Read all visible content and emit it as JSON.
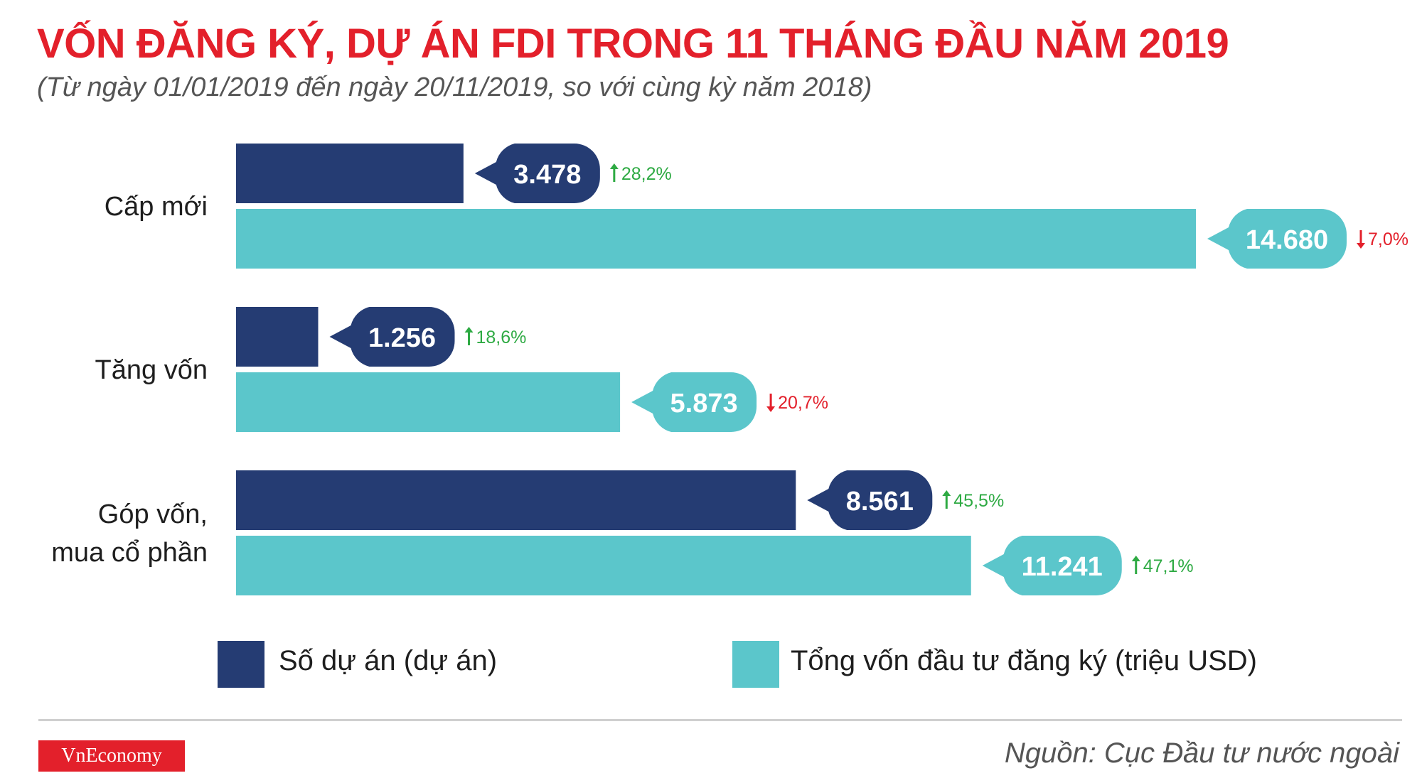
{
  "title": "VỐN ĐĂNG KÝ, DỰ ÁN FDI TRONG 11 THÁNG ĐẦU NĂM 2019",
  "subtitle": "(Từ ngày 01/01/2019 đến ngày 20/11/2019, so với cùng kỳ năm 2018)",
  "legend": [
    {
      "label": "Số dự án (dự án)",
      "color": "#253c73"
    },
    {
      "label": "Tổng vốn đầu tư đăng ký (triệu USD)",
      "color": "#5bc6cb"
    }
  ],
  "source": "Nguồn: Cục Đầu tư nước ngoài",
  "logo": "VnEconomy",
  "colors": {
    "up": "#2eaa43",
    "down": "#e3202b",
    "title": "#e3202b"
  },
  "chart_data": {
    "type": "bar",
    "orientation": "horizontal",
    "categories": [
      "Cấp mới",
      "Tăng vốn",
      "Góp vốn,\nmua cổ phần"
    ],
    "series": [
      {
        "name": "Số dự án (dự án)",
        "values": [
          3478,
          1256,
          8561
        ],
        "value_labels": [
          "3.478",
          "1.256",
          "8.561"
        ],
        "changes": [
          {
            "text": "28,2%",
            "direction": "up"
          },
          {
            "text": "18,6%",
            "direction": "up"
          },
          {
            "text": "45,5%",
            "direction": "up"
          }
        ]
      },
      {
        "name": "Tổng vốn đầu tư đăng ký (triệu USD)",
        "values": [
          14680,
          5873,
          11241
        ],
        "value_labels": [
          "14.680",
          "5.873",
          "11.241"
        ],
        "changes": [
          {
            "text": "7,0%",
            "direction": "down"
          },
          {
            "text": "20,7%",
            "direction": "down"
          },
          {
            "text": "47,1%",
            "direction": "up"
          }
        ]
      }
    ],
    "xlim": [
      0,
      14680
    ],
    "grid": false,
    "legend_position": "bottom"
  }
}
